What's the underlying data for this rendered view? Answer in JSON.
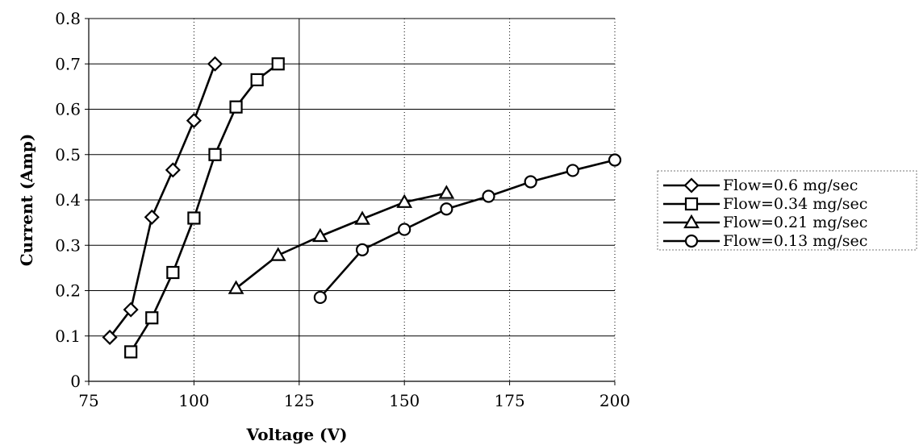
{
  "chart_data": {
    "type": "line",
    "xlabel": "Voltage (V)",
    "ylabel": "Current (Amp)",
    "xlim": [
      75,
      200
    ],
    "ylim": [
      0,
      0.8
    ],
    "x_ticks": [
      75,
      100,
      125,
      150,
      175,
      200
    ],
    "y_ticks": [
      0,
      0.1,
      0.2,
      0.3,
      0.4,
      0.5,
      0.6,
      0.7,
      0.8
    ],
    "x_tick_labels": [
      "75",
      "100",
      "125",
      "150",
      "175",
      "200"
    ],
    "y_tick_labels": [
      "0",
      "0.1",
      "0.2",
      "0.3",
      "0.4",
      "0.5",
      "0.6",
      "0.7",
      "0.8"
    ],
    "grid": true,
    "legend_position": "right",
    "series": [
      {
        "name": "Flow=0.6 mg/sec",
        "marker": "diamond",
        "x": [
          80,
          85,
          90,
          95,
          100,
          105
        ],
        "y": [
          0.097,
          0.158,
          0.362,
          0.466,
          0.575,
          0.7
        ]
      },
      {
        "name": "Flow=0.34 mg/sec",
        "marker": "square",
        "x": [
          85,
          90,
          95,
          100,
          105,
          110,
          115,
          120
        ],
        "y": [
          0.065,
          0.14,
          0.24,
          0.36,
          0.5,
          0.605,
          0.665,
          0.7
        ]
      },
      {
        "name": "Flow=0.21 mg/sec",
        "marker": "triangle",
        "x": [
          110,
          120,
          130,
          140,
          150,
          160
        ],
        "y": [
          0.205,
          0.278,
          0.32,
          0.358,
          0.395,
          0.415
        ]
      },
      {
        "name": "Flow=0.13 mg/sec",
        "marker": "circle",
        "x": [
          130,
          140,
          150,
          160,
          170,
          180,
          190,
          200
        ],
        "y": [
          0.185,
          0.29,
          0.335,
          0.38,
          0.408,
          0.44,
          0.465,
          0.488
        ]
      }
    ]
  }
}
